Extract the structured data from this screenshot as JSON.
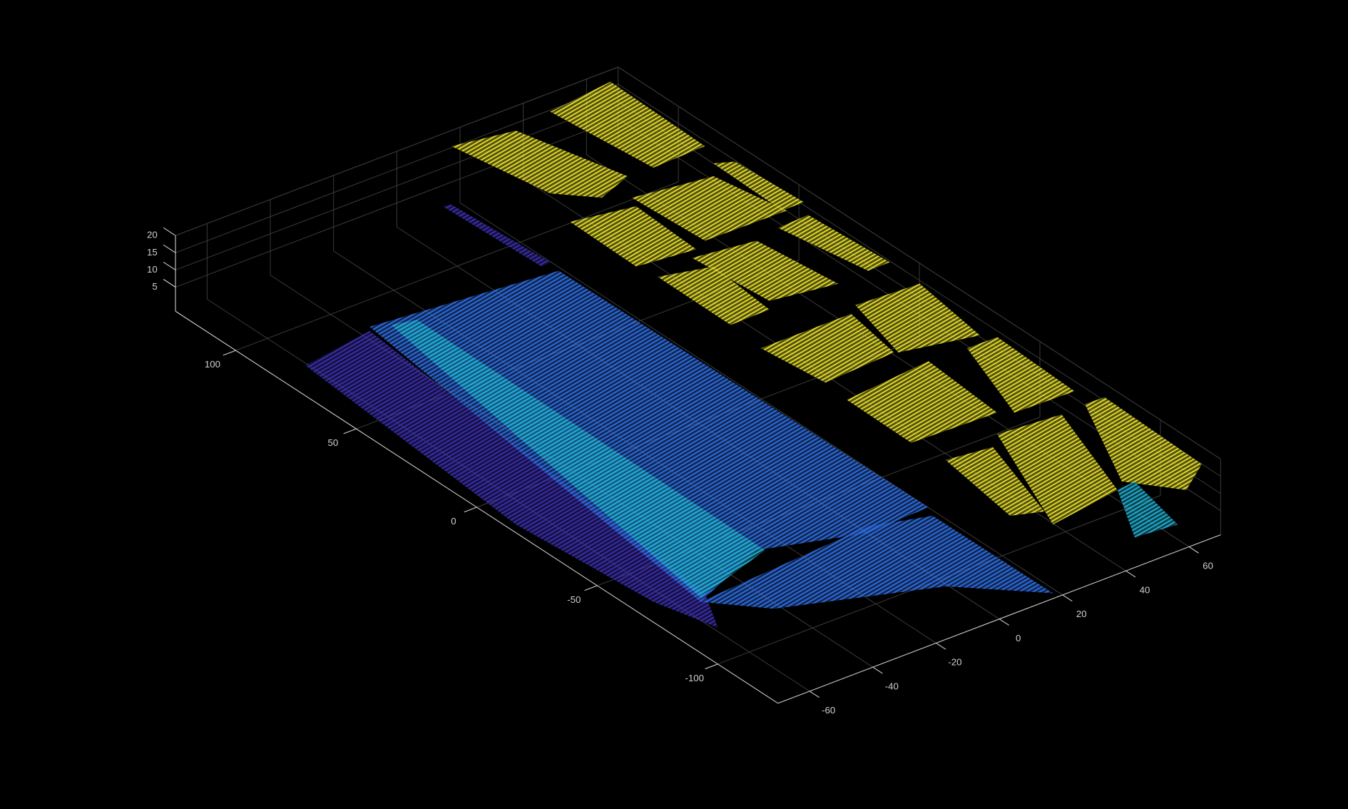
{
  "chart_data": {
    "type": "scatter3d",
    "xlim": [
      -70,
      70
    ],
    "ylim": [
      -125,
      125
    ],
    "zlim": [
      -2,
      20
    ],
    "xticks": [
      -60,
      -40,
      -20,
      0,
      20,
      40,
      60
    ],
    "yticks": [
      -100,
      -50,
      0,
      50,
      100
    ],
    "zticks": [
      5,
      10,
      15,
      20
    ],
    "grid": true,
    "colormap": [
      "#3b2fb0",
      "#2f6fe6",
      "#1fb3d6",
      "#e6df2a"
    ]
  }
}
